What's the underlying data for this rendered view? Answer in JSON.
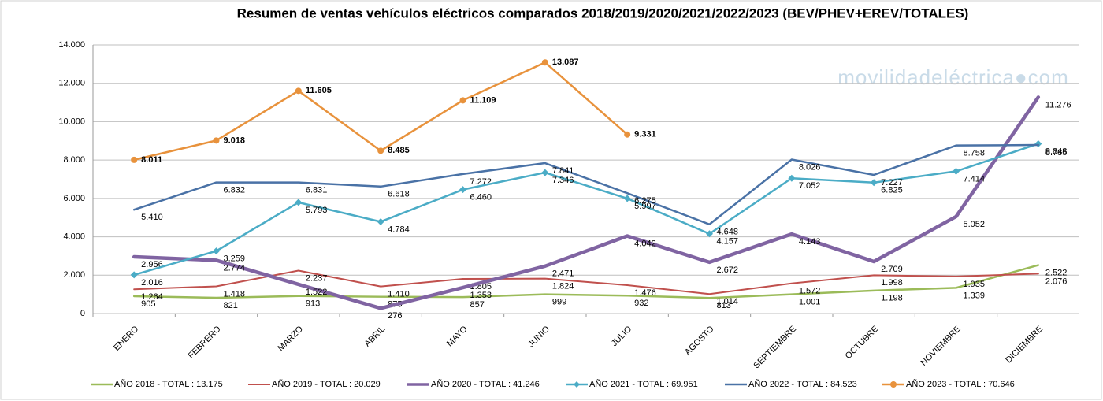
{
  "chart_data": {
    "type": "line",
    "title": "Resumen de ventas vehículos eléctricos comparados 2018/2019/2020/2021/2022/2023  (BEV/PHEV+EREV/TOTALES)",
    "watermark": "movilidadeléctrica●com",
    "categories": [
      "ENERO",
      "FEBRERO",
      "MARZO",
      "ABRIL",
      "MAYO",
      "JUNIO",
      "JULIO",
      "AGOSTO",
      "SEPTIEMBRE",
      "OCTUBRE",
      "NOVIEMBRE",
      "DICIEMBRE"
    ],
    "ylim": [
      0,
      14000
    ],
    "yticks": [
      0,
      {
        "value": 2000,
        "label": "2.000"
      },
      {
        "value": 4000,
        "label": "4.000"
      },
      {
        "value": 6000,
        "label": "6.000"
      },
      {
        "value": 8000,
        "label": "8.000"
      },
      {
        "value": 10000,
        "label": "10.000"
      },
      {
        "value": 12000,
        "label": "12.000"
      },
      {
        "value": 14000,
        "label": "14.000"
      }
    ],
    "grid": true,
    "legend": "bottom",
    "series": [
      {
        "name": "AÑO 2018 - TOTAL : 13.175",
        "color": "#9bbb59",
        "line_width": 2.5,
        "values": [
          905,
          821,
          913,
          875,
          857,
          999,
          932,
          813,
          1001,
          1198,
          1339,
          2522
        ],
        "value_labels": [
          "905",
          "821",
          "913",
          "875",
          "857",
          "999",
          "932",
          "813",
          "1.001",
          "1.198",
          "1.339",
          "2.522"
        ]
      },
      {
        "name": "AÑO 2019 - TOTAL : 20.029",
        "color": "#c0504d",
        "line_width": 2,
        "values": [
          1264,
          1418,
          2237,
          1410,
          1805,
          1824,
          1476,
          1014,
          1572,
          1998,
          1935,
          2076
        ],
        "value_labels": [
          "1.264",
          "1.418",
          "2.237",
          "1.410",
          "1.805",
          "1.824",
          "1.476",
          "1.014",
          "1.572",
          "1.998",
          "1.935",
          "2.076"
        ]
      },
      {
        "name": "AÑO 2020 - TOTAL : 41.246",
        "color": "#8064a2",
        "line_width": 4.5,
        "values": [
          2956,
          2774,
          1522,
          276,
          1353,
          2471,
          4042,
          2672,
          4143,
          2709,
          5052,
          11276
        ],
        "value_labels": [
          "2.956",
          "2.774",
          "1.522",
          "276",
          "1.353",
          "2.471",
          "4.042",
          "2.672",
          "4.143",
          "2.709",
          "5.052",
          "11.276"
        ]
      },
      {
        "name": "AÑO 2021 - TOTAL : 69.951",
        "color": "#4bacc6",
        "line_width": 2.5,
        "marker": "diamond",
        "values": [
          2016,
          3259,
          5793,
          4784,
          6460,
          7346,
          5997,
          4157,
          7052,
          6825,
          7414,
          8848
        ],
        "value_labels": [
          "2.016",
          "3.259",
          "5.793",
          "4.784",
          "6.460",
          "7.346",
          "5.997",
          "4.157",
          "7.052",
          "6.825",
          "7.414",
          "8.848"
        ]
      },
      {
        "name": "AÑO 2022 - TOTAL : 84.523",
        "color": "#4a72a6",
        "line_width": 2.5,
        "values": [
          5410,
          6832,
          6831,
          6618,
          7272,
          7841,
          6275,
          4648,
          8026,
          7227,
          8758,
          8785
        ],
        "value_labels": [
          "5.410",
          "6.832",
          "6.831",
          "6.618",
          "7.272",
          "7.841",
          "6.275",
          "4.648",
          "8.026",
          "7.227",
          "8.758",
          "8.785"
        ]
      },
      {
        "name": "AÑO 2023 - TOTAL : 70.646",
        "color": "#e8923c",
        "line_width": 2.5,
        "marker": "circle",
        "bold_labels": true,
        "values": [
          8011,
          9018,
          11605,
          8485,
          11109,
          13087,
          9331,
          null,
          null,
          null,
          null,
          null
        ],
        "value_labels": [
          "8.011",
          "9.018",
          "11.605",
          "8.485",
          "11.109",
          "13.087",
          "9.331",
          null,
          null,
          null,
          null,
          null
        ]
      }
    ]
  }
}
